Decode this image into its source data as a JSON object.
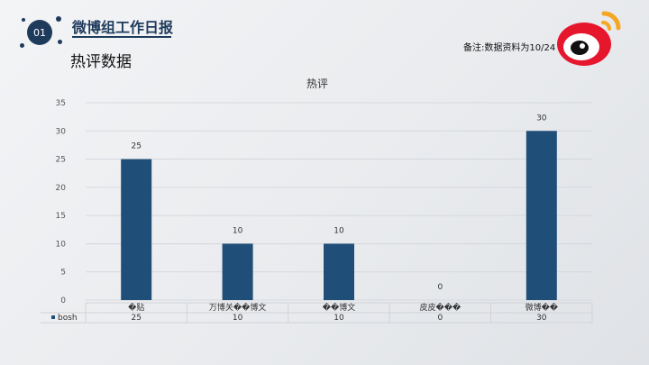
{
  "header": {
    "slide_number": "01",
    "title": "微博组工作日报",
    "subtitle": "热评数据",
    "note": "备注:数据资料为10/24"
  },
  "logo": {
    "name": "weibo-logo",
    "colors": {
      "ring": "#e6162d",
      "eye": "#111111",
      "waves": "#f5a623"
    }
  },
  "colors": {
    "bar": "#1f4e79",
    "accent": "#1f3b5c",
    "grid": "#d0d3d8"
  },
  "chart_data": {
    "type": "bar",
    "title": "热评",
    "categories": [
      "�贴",
      "万博关��博文",
      "��博文",
      "皮皮���",
      "微博��"
    ],
    "series": [
      {
        "name": "bosh",
        "values": [
          25,
          10,
          10,
          0,
          30
        ]
      }
    ],
    "ylim": [
      0,
      35
    ],
    "yticks": [
      0,
      5,
      10,
      15,
      20,
      25,
      30,
      35
    ],
    "grid": true,
    "legend": "data-table-bottom",
    "data_table": true
  }
}
